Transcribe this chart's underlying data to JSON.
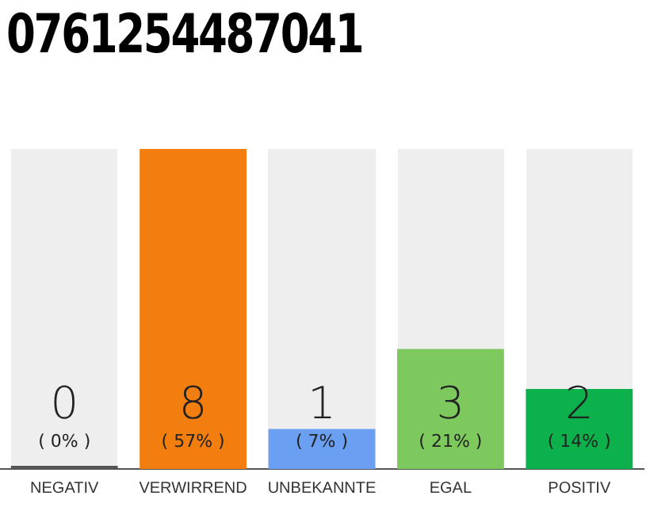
{
  "chart_data": {
    "type": "bar",
    "title": "0761254487041",
    "categories": [
      "NEGATIV",
      "VERWIRREND",
      "UNBEKANNTE",
      "EGAL",
      "POSITIV"
    ],
    "values": [
      0,
      8,
      1,
      3,
      2
    ],
    "colors": [
      "#555555",
      "#f27e0f",
      "#6a9ff2",
      "#7dc95e",
      "#0db14b"
    ],
    "ylim": [
      0,
      8
    ],
    "data_labels": true,
    "grid": false,
    "legend": false,
    "tick_labels": "x",
    "annotations": [
      "( 0% )",
      "( 57% )",
      "( 7% )",
      "( 21% )",
      "( 14% )"
    ]
  }
}
